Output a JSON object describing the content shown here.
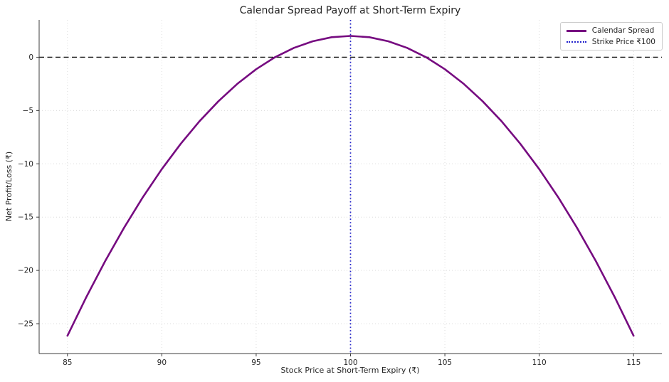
{
  "chart_data": {
    "type": "line",
    "title": "Calendar Spread Payoff at Short-Term Expiry",
    "xlabel": "Stock Price at Short-Term Expiry (₹)",
    "ylabel": "Net Profit/Loss (₹)",
    "xlim": [
      83.5,
      116.5
    ],
    "ylim": [
      -27.8,
      3.5
    ],
    "x_ticks": [
      85,
      90,
      95,
      100,
      105,
      110,
      115
    ],
    "y_ticks": [
      0,
      -5,
      -10,
      -15,
      -20,
      -25
    ],
    "grid": true,
    "grid_style": "dotted",
    "series": [
      {
        "name": "Calendar Spread",
        "color": "#760b80",
        "style": "solid",
        "width": 2.6,
        "x": [
          85,
          86,
          87,
          88,
          89,
          90,
          91,
          92,
          93,
          94,
          95,
          96,
          97,
          98,
          99,
          100,
          101,
          102,
          103,
          104,
          105,
          106,
          107,
          108,
          109,
          110,
          111,
          112,
          113,
          114,
          115
        ],
        "y": [
          -26.125,
          -22.5,
          -19.125,
          -16.0,
          -13.125,
          -10.5,
          -8.125,
          -6.0,
          -4.125,
          -2.5,
          -1.125,
          0.0,
          0.875,
          1.5,
          1.875,
          2.0,
          1.875,
          1.5,
          0.875,
          0.0,
          -1.125,
          -2.5,
          -4.125,
          -6.0,
          -8.125,
          -10.5,
          -13.125,
          -16.0,
          -19.125,
          -22.5,
          -26.125
        ]
      }
    ],
    "reference_lines": [
      {
        "name": "zero-profit-line",
        "orientation": "horizontal",
        "value": 0,
        "color": "#111111",
        "style": "dashed"
      },
      {
        "name": "strike-price-line",
        "orientation": "vertical",
        "value": 100,
        "color": "#2222cc",
        "style": "dotted"
      }
    ],
    "legend": {
      "position": "upper right",
      "entries": [
        {
          "label": "Calendar Spread",
          "color": "#760b80",
          "style": "solid"
        },
        {
          "label": "Strike Price ₹100",
          "color": "#2222cc",
          "style": "dotted"
        }
      ]
    },
    "key_points": {
      "max_profit": 2.0,
      "max_profit_at": 100,
      "breakeven_prices": [
        96,
        104
      ],
      "value_at_85": -26.125,
      "value_at_115": -26.125
    }
  }
}
